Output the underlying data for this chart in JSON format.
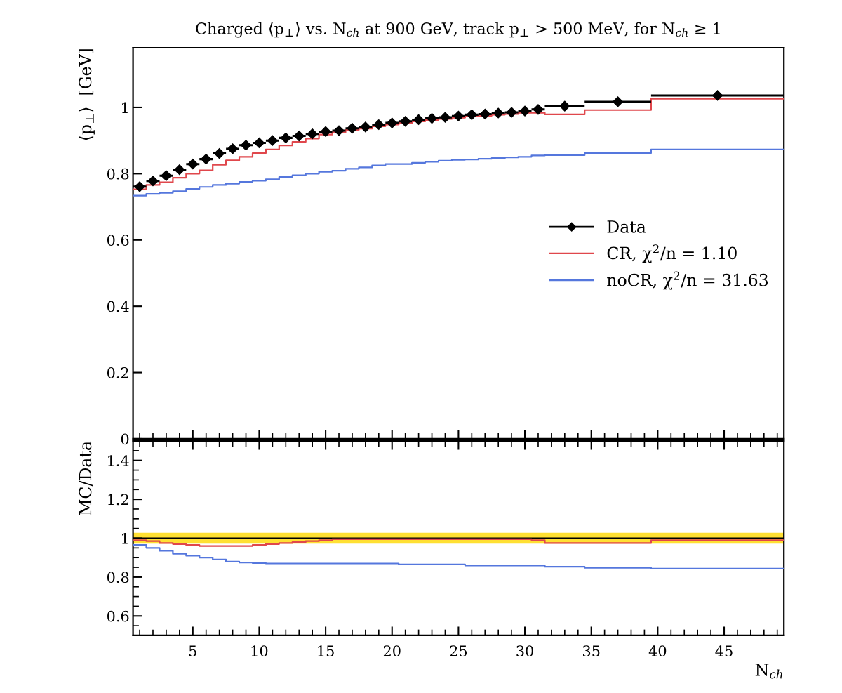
{
  "chart_data": [
    {
      "type": "step",
      "title": "Charged ⟨p$_{⊥}$⟩ vs. N$_{ch}$ at 900 GeV, track p$_{⊥}$ > 500 MeV, for N$_{ch}$ ≥ 1",
      "ylabel": "⟨p$_{⊥}$⟩  [GeV]",
      "xlim": [
        0.5,
        49.5
      ],
      "xticks": [
        5,
        10,
        15,
        20,
        25,
        30,
        35,
        40,
        45
      ],
      "ylim": [
        0,
        1.18
      ],
      "yticks": [
        0,
        0.2,
        0.4,
        0.6,
        0.8,
        1
      ],
      "tick_labels": "y",
      "legend": "right",
      "grid": false,
      "series": [
        {
          "name": "Data",
          "type": "scatter",
          "color": "#000000",
          "marker": "diamond",
          "x": [
            1,
            2,
            3,
            4,
            5,
            6,
            7,
            8,
            9,
            10,
            11,
            12,
            13,
            14,
            15,
            16,
            17,
            18,
            19,
            20,
            21,
            22,
            23,
            24,
            25,
            26,
            27,
            28,
            29,
            30,
            31,
            33,
            37,
            44.5
          ],
          "values": [
            0.761,
            0.778,
            0.794,
            0.812,
            0.829,
            0.844,
            0.861,
            0.875,
            0.886,
            0.893,
            0.9,
            0.908,
            0.914,
            0.92,
            0.927,
            0.93,
            0.937,
            0.941,
            0.948,
            0.953,
            0.958,
            0.963,
            0.967,
            0.97,
            0.974,
            0.978,
            0.98,
            0.983,
            0.985,
            0.989,
            0.994,
            1.004,
            1.017,
            1.036
          ],
          "errors": [
            0.005,
            0.005,
            0.005,
            0.005,
            0.005,
            0.005,
            0.005,
            0.005,
            0.005,
            0.005,
            0.005,
            0.005,
            0.005,
            0.005,
            0.005,
            0.005,
            0.005,
            0.005,
            0.005,
            0.005,
            0.005,
            0.005,
            0.005,
            0.005,
            0.006,
            0.006,
            0.006,
            0.007,
            0.007,
            0.008,
            0.01,
            0.01,
            0.012,
            0.015
          ],
          "xerrors": [
            0.5,
            0.5,
            0.5,
            0.5,
            0.5,
            0.5,
            0.5,
            0.5,
            0.5,
            0.5,
            0.5,
            0.5,
            0.5,
            0.5,
            0.5,
            0.5,
            0.5,
            0.5,
            0.5,
            0.5,
            0.5,
            0.5,
            0.5,
            0.5,
            0.5,
            0.5,
            0.5,
            0.5,
            0.5,
            0.5,
            0.5,
            1.5,
            2.5,
            5
          ]
        },
        {
          "name": "CR, χ$^{2}$/n = 1.10",
          "type": "step",
          "color": "#e0474c",
          "x": [
            0.5,
            1.5,
            2.5,
            3.5,
            4.5,
            5.5,
            6.5,
            7.5,
            8.5,
            9.5,
            10.5,
            11.5,
            12.5,
            13.5,
            14.5,
            15.5,
            16.5,
            17.5,
            18.5,
            19.5,
            20.5,
            21.5,
            22.5,
            23.5,
            24.5,
            25.5,
            26.5,
            27.5,
            28.5,
            29.5,
            30.5,
            31.5,
            34.5,
            39.5,
            49.5
          ],
          "values": [
            0.753,
            0.766,
            0.774,
            0.788,
            0.8,
            0.81,
            0.827,
            0.84,
            0.851,
            0.862,
            0.873,
            0.885,
            0.896,
            0.906,
            0.918,
            0.925,
            0.932,
            0.936,
            0.943,
            0.948,
            0.953,
            0.958,
            0.962,
            0.965,
            0.969,
            0.973,
            0.975,
            0.978,
            0.98,
            0.984,
            0.984,
            0.979,
            0.992,
            1.026,
            1.026
          ]
        },
        {
          "name": "noCR, χ$^{2}$/n = 31.63",
          "type": "step",
          "color": "#5577dd",
          "x": [
            0.5,
            1.5,
            2.5,
            3.5,
            4.5,
            5.5,
            6.5,
            7.5,
            8.5,
            9.5,
            10.5,
            11.5,
            12.5,
            13.5,
            14.5,
            15.5,
            16.5,
            17.5,
            18.5,
            19.5,
            20.5,
            21.5,
            22.5,
            23.5,
            24.5,
            25.5,
            26.5,
            27.5,
            28.5,
            29.5,
            30.5,
            31.5,
            34.5,
            39.5,
            49.5
          ],
          "values": [
            0.734,
            0.739,
            0.742,
            0.747,
            0.754,
            0.76,
            0.766,
            0.77,
            0.775,
            0.779,
            0.783,
            0.79,
            0.795,
            0.8,
            0.806,
            0.809,
            0.815,
            0.819,
            0.825,
            0.829,
            0.829,
            0.833,
            0.836,
            0.839,
            0.842,
            0.843,
            0.845,
            0.847,
            0.849,
            0.851,
            0.855,
            0.856,
            0.862,
            0.873,
            0.873
          ]
        }
      ]
    },
    {
      "type": "step",
      "ylabel": "MC/Data",
      "bands": [
        {
          "axis": "y",
          "from": 0.972,
          "to": 1.028,
          "color": "#ffe033"
        }
      ],
      "xlabel": "N$_{ch}$",
      "xlim": [
        0.5,
        49.5
      ],
      "xticks": [
        5,
        10,
        15,
        20,
        25,
        30,
        35,
        40,
        45
      ],
      "ylim": [
        0.5,
        1.5
      ],
      "yticks": [
        0.6,
        0.8,
        1,
        1.2,
        1.4
      ],
      "grid": false,
      "series": [
        {
          "color": "#000000",
          "x": [
            0.5,
            1.5,
            2.5,
            3.5,
            4.5,
            5.5,
            6.5,
            7.5,
            8.5,
            9.5,
            10.5,
            11.5,
            12.5,
            13.5,
            14.5,
            15.5,
            16.5,
            17.5,
            18.5,
            19.5,
            20.5,
            21.5,
            22.5,
            23.5,
            24.5,
            25.5,
            26.5,
            27.5,
            28.5,
            29.5,
            30.5,
            31.5,
            34.5,
            39.5,
            49.5
          ],
          "values": [
            1,
            1,
            1,
            1,
            1,
            1,
            1,
            1,
            1,
            1,
            1,
            1,
            1,
            1,
            1,
            1,
            1,
            1,
            1,
            1,
            1,
            1,
            1,
            1,
            1,
            1,
            1,
            1,
            1,
            1,
            1,
            1,
            1,
            1,
            1
          ]
        },
        {
          "type": "step",
          "color": "#e0474c",
          "x": [
            0.5,
            1.5,
            2.5,
            3.5,
            4.5,
            5.5,
            6.5,
            7.5,
            8.5,
            9.5,
            10.5,
            11.5,
            12.5,
            13.5,
            14.5,
            15.5,
            16.5,
            17.5,
            18.5,
            19.5,
            20.5,
            21.5,
            22.5,
            23.5,
            24.5,
            25.5,
            26.5,
            27.5,
            28.5,
            29.5,
            30.5,
            31.5,
            34.5,
            39.5,
            49.5
          ],
          "values": [
            0.99,
            0.985,
            0.975,
            0.97,
            0.965,
            0.96,
            0.96,
            0.96,
            0.96,
            0.965,
            0.97,
            0.975,
            0.98,
            0.985,
            0.99,
            0.995,
            0.995,
            0.995,
            0.995,
            0.995,
            0.995,
            0.995,
            0.995,
            0.995,
            0.995,
            0.995,
            0.995,
            0.995,
            0.995,
            0.995,
            0.99,
            0.975,
            0.975,
            0.99,
            0.99
          ]
        },
        {
          "type": "step",
          "color": "#5577dd",
          "x": [
            0.5,
            1.5,
            2.5,
            3.5,
            4.5,
            5.5,
            6.5,
            7.5,
            8.5,
            9.5,
            10.5,
            11.5,
            12.5,
            13.5,
            14.5,
            15.5,
            16.5,
            17.5,
            18.5,
            19.5,
            20.5,
            21.5,
            22.5,
            23.5,
            24.5,
            25.5,
            26.5,
            27.5,
            28.5,
            29.5,
            30.5,
            31.5,
            34.5,
            39.5,
            49.5
          ],
          "values": [
            0.965,
            0.95,
            0.935,
            0.92,
            0.91,
            0.9,
            0.89,
            0.88,
            0.875,
            0.872,
            0.87,
            0.87,
            0.87,
            0.87,
            0.87,
            0.87,
            0.87,
            0.87,
            0.87,
            0.87,
            0.865,
            0.865,
            0.865,
            0.865,
            0.865,
            0.86,
            0.86,
            0.86,
            0.86,
            0.86,
            0.86,
            0.853,
            0.848,
            0.843,
            0.843
          ]
        }
      ]
    }
  ]
}
